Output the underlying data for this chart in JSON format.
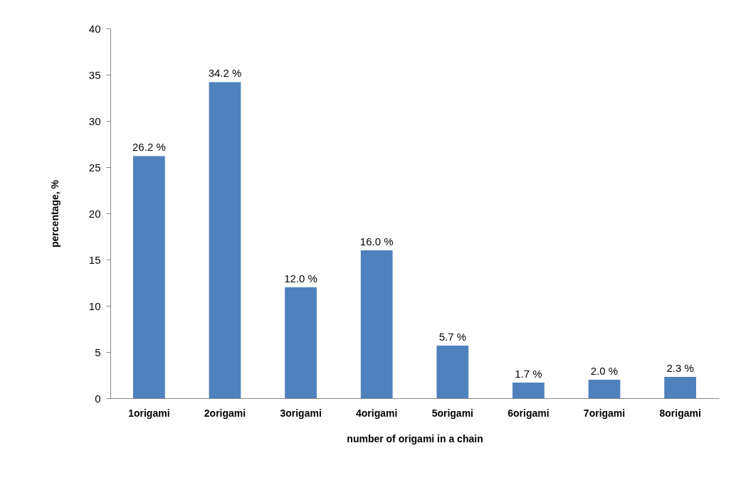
{
  "chart_data": {
    "type": "bar",
    "xlabel": "number of origami in a chain",
    "ylabel": "percentage, %",
    "categories": [
      "1origami",
      "2origami",
      "3origami",
      "4origami",
      "5origami",
      "6origami",
      "7origami",
      "8origami"
    ],
    "values": [
      26.2,
      34.2,
      12.0,
      16.0,
      5.7,
      1.7,
      2.0,
      2.3
    ],
    "value_labels": [
      "26.2 %",
      "34.2 %",
      "12.0 %",
      "16.0 %",
      "5.7 %",
      "1.7 %",
      "2.0 %",
      "2.3 %"
    ],
    "color": "#4f81bd",
    "ylim": [
      0,
      40
    ],
    "yticks": [
      0,
      5,
      10,
      15,
      20,
      25,
      30,
      35,
      40
    ]
  }
}
